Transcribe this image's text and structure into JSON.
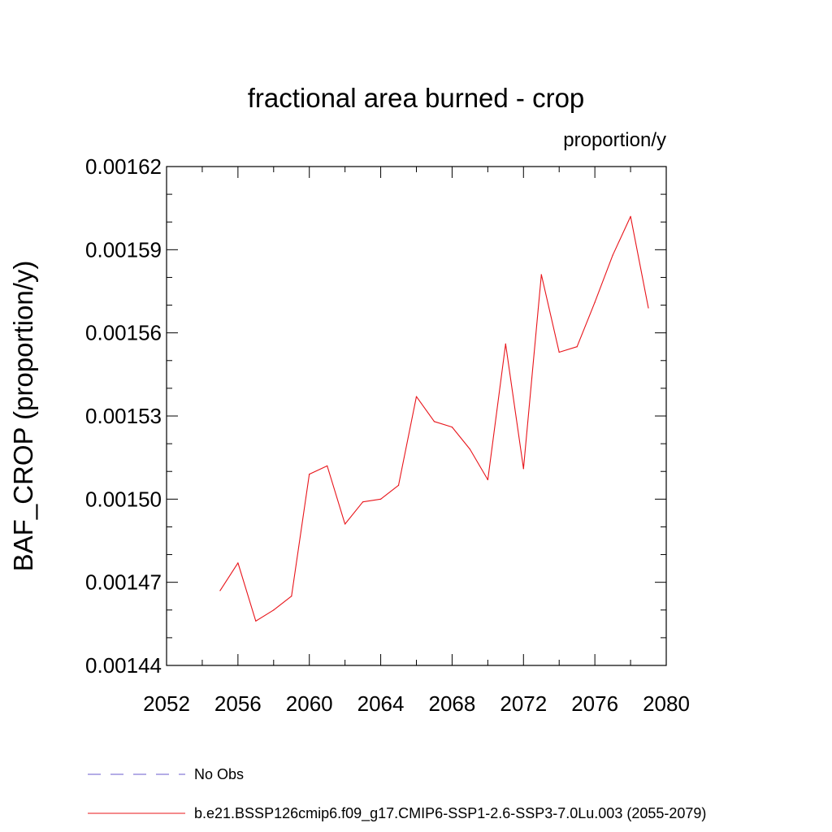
{
  "chart_data": {
    "type": "line",
    "title": "fractional area burned - crop",
    "units_label": "proportion/y",
    "ylabel": "BAF_CROP  (proportion/y)",
    "xlabel": "",
    "xlim": [
      2052,
      2080
    ],
    "ylim": [
      0.00144,
      0.00162
    ],
    "x_ticks": [
      "2052",
      "2056",
      "2060",
      "2064",
      "2068",
      "2072",
      "2076",
      "2080"
    ],
    "y_ticks": [
      "0.00144",
      "0.00147",
      "0.00150",
      "0.00153",
      "0.00156",
      "0.00159",
      "0.00162"
    ],
    "grid": false,
    "legend_position": "bottom",
    "series": [
      {
        "name": "b.e21.BSSP126cmip6.f09_g17.CMIP6-SSP1-2.6-SSP3-7.0Lu.003 (2055-2079)",
        "color": "#e8141a",
        "dash": "solid",
        "x": [
          2055,
          2056,
          2057,
          2058,
          2059,
          2060,
          2061,
          2062,
          2063,
          2064,
          2065,
          2066,
          2067,
          2068,
          2069,
          2070,
          2071,
          2072,
          2073,
          2074,
          2075,
          2076,
          2077,
          2078,
          2079
        ],
        "y": [
          0.001467,
          0.001477,
          0.001456,
          0.00146,
          0.001465,
          0.001509,
          0.001512,
          0.001491,
          0.001499,
          0.0015,
          0.001505,
          0.001537,
          0.001528,
          0.001526,
          0.001518,
          0.001507,
          0.001556,
          0.001511,
          0.001581,
          0.001553,
          0.001555,
          0.001571,
          0.001588,
          0.001602,
          0.001569
        ]
      }
    ],
    "legend": [
      {
        "label": "No Obs",
        "color": "#6a5acd",
        "dash": "dashed"
      },
      {
        "label": "b.e21.BSSP126cmip6.f09_g17.CMIP6-SSP1-2.6-SSP3-7.0Lu.003 (2055-2079)",
        "color": "#e8141a",
        "dash": "solid"
      }
    ]
  }
}
